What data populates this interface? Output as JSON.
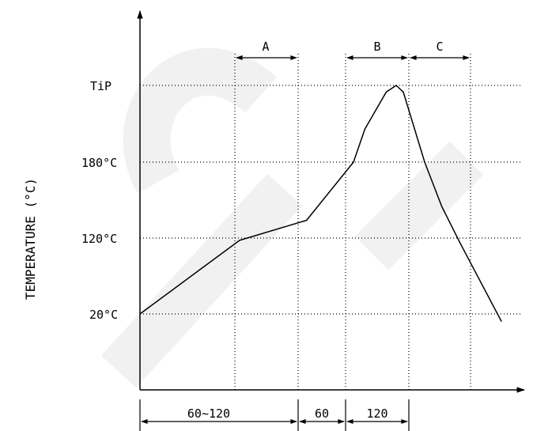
{
  "chart_data": {
    "type": "line",
    "title": "",
    "ylabel": "TEMPERATURE (°C)",
    "xlabel": "",
    "y_ticks": [
      "20°C",
      "120°C",
      "180°C",
      "TiP"
    ],
    "x_segments": [
      "60~120",
      "60",
      "120"
    ],
    "zones": [
      "A",
      "B",
      "C"
    ],
    "series": [
      {
        "points": [
          {
            "x": 0,
            "y": 20
          },
          {
            "x": 70,
            "y": 117
          },
          {
            "x": 117,
            "y": 134
          },
          {
            "x": 150,
            "y": 180
          },
          {
            "x": 158,
            "y": 205
          },
          {
            "x": 173,
            "y": 233
          },
          {
            "x": 180,
            "y": 238
          },
          {
            "x": 185,
            "y": 233
          },
          {
            "x": 200,
            "y": 180
          },
          {
            "x": 212,
            "y": 145
          },
          {
            "x": 225,
            "y": 113
          },
          {
            "x": 254,
            "y": 10
          }
        ]
      }
    ],
    "grid": true
  },
  "watermark": {
    "text": "ECP"
  }
}
